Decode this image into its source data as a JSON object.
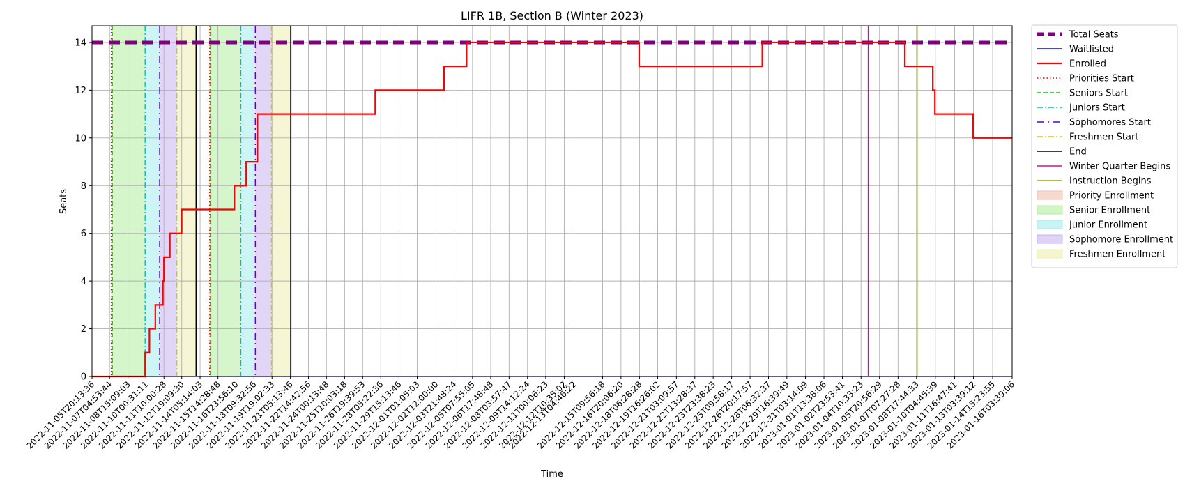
{
  "chart_data": {
    "type": "line",
    "title": "LIFR 1B, Section B (Winter 2023)",
    "xlabel": "Time",
    "ylabel": "Seats",
    "ylim": [
      0,
      14.7
    ],
    "yticks": [
      0,
      2,
      4,
      6,
      8,
      10,
      12,
      14
    ],
    "grid": true,
    "legend_position": "outside-right",
    "x_tick_labels": [
      "2022-11-05T20:13:36",
      "2022-11-07T04:53:44",
      "2022-11-08T15:09:03",
      "2022-11-10T00:31:11",
      "2022-11-11T10:00:28",
      "2022-11-12T19:09:30",
      "2022-11-14T05:14:03",
      "2022-11-15T14:28:48",
      "2022-11-16T23:56:10",
      "2022-11-18T09:32:56",
      "2022-11-19T19:02:33",
      "2022-11-21T05:13:46",
      "2022-11-22T14:42:56",
      "2022-11-24T00:13:48",
      "2022-11-25T10:03:18",
      "2022-11-26T19:39:53",
      "2022-11-28T05:22:36",
      "2022-11-29T15:13:46",
      "2022-12-01T01:05:03",
      "2022-12-02T12:00:00",
      "2022-12-03T21:48:24",
      "2022-12-05T07:55:05",
      "2022-12-06T17:48:48",
      "2022-12-08T03:57:47",
      "2022-12-09T14:12:24",
      "2022-12-11T00:06:23",
      "2022-12-12T10:35:02",
      "2022-12-13T04:46:22",
      "2022-12-15T09:56:18",
      "2022-12-16T20:06:20",
      "2022-12-18T06:28:28",
      "2022-12-19T16:26:02",
      "2022-12-21T03:09:57",
      "2022-12-22T13:28:37",
      "2022-12-23T23:38:23",
      "2022-12-25T09:58:17",
      "2022-12-26T20:17:57",
      "2022-12-28T06:32:37",
      "2022-12-29T16:39:49",
      "2022-12-31T03:14:09",
      "2023-01-01T13:38:06",
      "2023-01-02T23:53:41",
      "2023-01-04T10:33:23",
      "2023-01-05T20:56:29",
      "2023-01-07T07:27:28",
      "2023-01-08T17:44:33",
      "2023-01-10T04:45:39",
      "2023-01-11T16:47:41",
      "2023-01-13T03:39:12",
      "2023-01-14T15:23:55",
      "2023-01-16T03:39:06"
    ],
    "series": [
      {
        "name": "Total Seats",
        "color": "#800080",
        "style": "dashed-thick",
        "x": [
          "2022-11-05T20:13:36",
          "2023-01-16T03:39:06"
        ],
        "y": [
          14,
          14
        ]
      },
      {
        "name": "Waitlisted",
        "color": "#0000ff",
        "style": "solid",
        "x": [
          "2022-11-05T20:13:36",
          "2023-01-16T03:39:06"
        ],
        "y": [
          0,
          0
        ]
      },
      {
        "name": "Enrolled",
        "color": "#ff0000",
        "style": "step-thick",
        "x": [
          "2022-11-05T20:13:36",
          "2022-11-09T23:00:00",
          "2022-11-10T07:00:00",
          "2022-11-10T18:00:00",
          "2022-11-11T08:00:00",
          "2022-11-11T10:00:28",
          "2022-11-11T12:00:00",
          "2022-11-11T21:00:00",
          "2022-11-12T19:00:00",
          "2022-11-12T20:30:00",
          "2022-11-14T10:00:00",
          "2022-11-16T21:00:00",
          "2022-11-17T19:00:00",
          "2022-11-18T16:00:00",
          "2022-11-27T19:00:00",
          "2022-12-03T03:00:00",
          "2022-12-04T21:00:00",
          "2022-12-18T06:00:00",
          "2022-12-27T19:00:00",
          "2023-01-07T20:00:00",
          "2023-01-10T00:00:00",
          "2023-01-10T04:00:00",
          "2023-01-13T03:00:00",
          "2023-01-16T03:39:06"
        ],
        "y": [
          0,
          1,
          2,
          3,
          4,
          5,
          5,
          6,
          7,
          7,
          7,
          8,
          9,
          11,
          12,
          13,
          14,
          13,
          14,
          13,
          12,
          11,
          10,
          10
        ]
      }
    ],
    "vertical_lines": [
      {
        "name": "Priorities Start",
        "color": "#ff0000",
        "style": "dotted",
        "x": [
          "2022-11-07T08:00:00",
          "2022-11-14T23:00:00"
        ]
      },
      {
        "name": "Seniors Start",
        "color": "#00cc00",
        "style": "dashed",
        "x": [
          "2022-11-07T10:00:00",
          "2022-11-15T00:30:00"
        ]
      },
      {
        "name": "Juniors Start",
        "color": "#00bfbf",
        "style": "dashdot",
        "x": [
          "2022-11-09T23:00:00",
          "2022-11-17T09:00:00"
        ]
      },
      {
        "name": "Sophomores Start",
        "color": "#5500dd",
        "style": "dashdot-sparse",
        "x": [
          "2022-11-11T02:00:00",
          "2022-11-18T12:00:00"
        ]
      },
      {
        "name": "Freshmen Start",
        "color": "#cccc00",
        "style": "dashdot",
        "x": [
          "2022-11-12T10:00:00",
          "2022-11-19T18:00:00"
        ]
      },
      {
        "name": "End",
        "color": "#000000",
        "style": "solid",
        "x": [
          "2022-11-13T22:00:00",
          "2022-11-21T06:00:00"
        ]
      },
      {
        "name": "Winter Quarter Begins",
        "color": "#e000b0",
        "style": "solid",
        "x": [
          "2023-01-05T00:00:00"
        ]
      },
      {
        "name": "Instruction Begins",
        "color": "#88b000",
        "style": "solid",
        "x": [
          "2023-01-08T19:00:00"
        ]
      }
    ],
    "shaded_periods": [
      {
        "name": "Priority Enrollment",
        "color": "#f4c0b0",
        "ranges": [
          [
            "2022-11-07T08:00:00",
            "2022-11-07T10:00:00"
          ],
          [
            "2022-11-14T23:00:00",
            "2022-11-15T00:30:00"
          ]
        ]
      },
      {
        "name": "Senior Enrollment",
        "color": "#b3eea0",
        "ranges": [
          [
            "2022-11-07T10:00:00",
            "2022-11-09T23:00:00"
          ],
          [
            "2022-11-15T00:30:00",
            "2022-11-17T09:00:00"
          ]
        ]
      },
      {
        "name": "Junior Enrollment",
        "color": "#a4ecec",
        "ranges": [
          [
            "2022-11-09T23:00:00",
            "2022-11-11T02:00:00"
          ],
          [
            "2022-11-17T09:00:00",
            "2022-11-18T12:00:00"
          ]
        ]
      },
      {
        "name": "Sophomore Enrollment",
        "color": "#c9b5ef",
        "ranges": [
          [
            "2022-11-11T02:00:00",
            "2022-11-12T10:00:00"
          ],
          [
            "2022-11-18T12:00:00",
            "2022-11-19T18:00:00"
          ]
        ]
      },
      {
        "name": "Freshmen Enrollment",
        "color": "#efefb0",
        "ranges": [
          [
            "2022-11-12T10:00:00",
            "2022-11-13T22:00:00"
          ],
          [
            "2022-11-19T18:00:00",
            "2022-11-21T06:00:00"
          ]
        ]
      }
    ],
    "legend": [
      "Total Seats",
      "Waitlisted",
      "Enrolled",
      "Priorities Start",
      "Seniors Start",
      "Juniors Start",
      "Sophomores Start",
      "Freshmen Start",
      "End",
      "Winter Quarter Begins",
      "Instruction Begins",
      "Priority Enrollment",
      "Senior Enrollment",
      "Junior Enrollment",
      "Sophomore Enrollment",
      "Freshmen Enrollment"
    ]
  }
}
